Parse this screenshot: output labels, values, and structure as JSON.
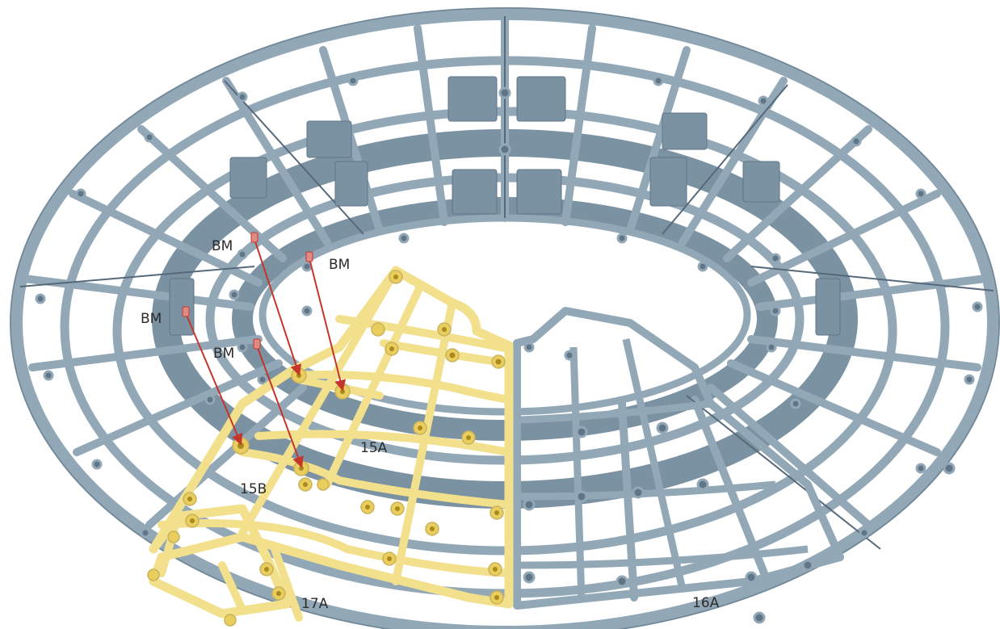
{
  "colors": {
    "background": "#ffffff",
    "frame_fill": "#93a8b7",
    "frame_stroke": "#6f8696",
    "frame_dark": "#56697a",
    "wall_fill": "#7b92a3",
    "highlight_fill": "#f3e08c",
    "highlight_stroke": "#c9b35a",
    "boss_fill": "#e9cd5e",
    "boss_hole": "#a98a1c",
    "arrow": "#c4352b",
    "marker": "#e08a86",
    "label_text": "#2b2b2b"
  },
  "labels": {
    "bm_1": "BM",
    "bm_2": "BM",
    "bm_3": "BM",
    "bm_4": "BM",
    "part_15a": "15A",
    "part_15b": "15B",
    "part_16a": "16A",
    "part_17a": "17A"
  }
}
